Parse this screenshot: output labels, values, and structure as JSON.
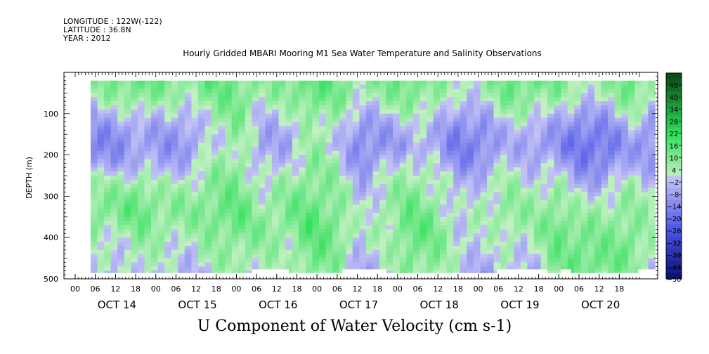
{
  "header": {
    "longitude": "LONGITUDE : 122W(-122)",
    "latitude": "LATITUDE : 36.8N",
    "year": "YEAR : 2012"
  },
  "chart_data": {
    "type": "heatmap",
    "title": "Hourly Gridded MBARI Mooring M1 Sea Water Temperature and Salinity Observations",
    "bottom_label": "U Component of Water Velocity (cm s-1)",
    "ylabel": "DEPTH (m)",
    "ylim": [
      500,
      0
    ],
    "y_ticks": [
      "100",
      "200",
      "300",
      "400",
      "500"
    ],
    "data_depth_range": [
      20,
      485
    ],
    "x_hour_ticks": [
      "00",
      "06",
      "12",
      "18",
      "00",
      "06",
      "12",
      "18",
      "00",
      "06",
      "12",
      "18",
      "00",
      "06",
      "12",
      "18",
      "00",
      "06",
      "12",
      "18",
      "00",
      "06",
      "12",
      "18",
      "00",
      "06",
      "12",
      "18"
    ],
    "x_day_labels": [
      "OCT 14",
      "OCT 15",
      "OCT 16",
      "OCT 17",
      "OCT 18",
      "OCT 19",
      "OCT 20"
    ],
    "colorbar": {
      "levels": [
        46,
        40,
        34,
        28,
        22,
        16,
        10,
        4,
        -2,
        -8,
        -14,
        -20,
        -26,
        -32,
        -38,
        -44,
        -50
      ],
      "range": [
        -50,
        52
      ]
    },
    "colors": {
      "pos_low": "#c3f0c3",
      "pos_mid": "#2fe05a",
      "pos_high": "#0d4d1a",
      "neg_low": "#c4c4f5",
      "neg_mid": "#4a52e6",
      "neg_high": "#0a0f6b",
      "missing": "#ffffff"
    },
    "velocity_grid": {
      "columns_per_row": 24,
      "depth_rows": [
        20,
        60,
        100,
        140,
        180,
        220,
        260,
        300,
        340,
        380,
        420,
        460,
        485
      ],
      "values": [
        [
          6,
          12,
          14,
          10,
          8,
          14,
          12,
          6,
          10,
          16,
          12,
          6,
          10,
          14,
          8,
          2,
          6,
          12,
          14,
          10,
          4,
          6,
          14,
          6
        ],
        [
          2,
          6,
          10,
          6,
          4,
          10,
          12,
          4,
          6,
          14,
          10,
          2,
          6,
          10,
          6,
          -2,
          2,
          10,
          8,
          6,
          0,
          2,
          10,
          2
        ],
        [
          -6,
          -4,
          2,
          -2,
          -4,
          6,
          10,
          -2,
          0,
          8,
          6,
          -6,
          -2,
          4,
          2,
          -8,
          -6,
          4,
          2,
          -2,
          -10,
          -6,
          4,
          -6
        ],
        [
          -10,
          -12,
          -6,
          -8,
          -8,
          2,
          8,
          -6,
          -4,
          4,
          2,
          -12,
          -8,
          -4,
          -4,
          -14,
          -12,
          -2,
          -6,
          -8,
          -16,
          -14,
          -4,
          -12
        ],
        [
          -14,
          -12,
          -8,
          -10,
          -10,
          0,
          6,
          -8,
          -6,
          6,
          0,
          -14,
          -10,
          -6,
          -6,
          -16,
          -14,
          -4,
          -8,
          -12,
          -18,
          -18,
          -8,
          -14
        ],
        [
          -10,
          -8,
          -4,
          -8,
          -4,
          4,
          8,
          -4,
          -2,
          8,
          4,
          -12,
          -4,
          2,
          -2,
          -12,
          -10,
          0,
          -4,
          -6,
          -14,
          -14,
          -4,
          -10
        ],
        [
          4,
          2,
          6,
          0,
          2,
          8,
          10,
          0,
          4,
          10,
          6,
          -6,
          2,
          6,
          4,
          -6,
          -2,
          4,
          0,
          2,
          -8,
          -6,
          2,
          -2
        ],
        [
          10,
          8,
          12,
          6,
          6,
          10,
          12,
          4,
          8,
          12,
          8,
          -4,
          4,
          10,
          6,
          -4,
          2,
          6,
          4,
          8,
          -2,
          2,
          6,
          0
        ],
        [
          12,
          10,
          14,
          8,
          8,
          12,
          14,
          6,
          10,
          14,
          10,
          -2,
          6,
          12,
          10,
          -2,
          4,
          8,
          6,
          10,
          4,
          6,
          8,
          2
        ],
        [
          6,
          4,
          10,
          6,
          4,
          10,
          12,
          8,
          8,
          16,
          12,
          0,
          4,
          14,
          12,
          0,
          0,
          6,
          4,
          14,
          10,
          8,
          10,
          4
        ],
        [
          2,
          0,
          6,
          2,
          0,
          6,
          8,
          6,
          4,
          14,
          10,
          -2,
          2,
          12,
          10,
          2,
          -2,
          2,
          0,
          12,
          12,
          10,
          12,
          2
        ],
        [
          0,
          -2,
          4,
          0,
          -2,
          4,
          6,
          4,
          2,
          12,
          8,
          -4,
          0,
          10,
          8,
          0,
          -4,
          0,
          -2,
          10,
          14,
          12,
          10,
          0
        ],
        [
          -2,
          -4,
          2,
          -2,
          -4,
          2,
          4,
          2,
          0,
          10,
          6,
          -6,
          -2,
          8,
          6,
          -2,
          -6,
          -2,
          -4,
          8,
          12,
          10,
          8,
          -2
        ]
      ],
      "missing_bottom_segments_hours": [
        [
          48,
          59
        ],
        [
          75,
          82
        ],
        [
          82,
          88
        ],
        [
          121,
          136
        ],
        [
          140,
          143
        ],
        [
          163,
          171
        ],
        [
          183,
          197
        ]
      ]
    }
  }
}
